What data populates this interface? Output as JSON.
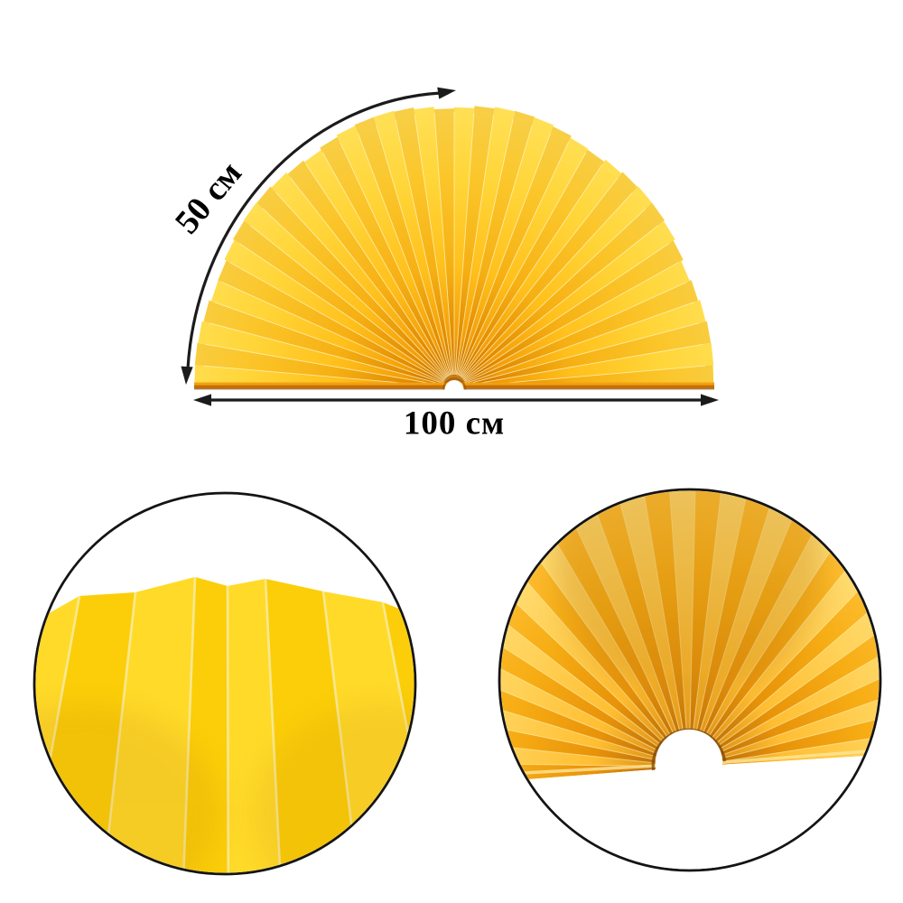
{
  "annotations": {
    "radius": {
      "label": "50 см"
    },
    "width": {
      "label": "100 см"
    }
  },
  "icons": {
    "radius_arrow": "curved-double-arrow-icon",
    "width_arrow": "horizontal-double-arrow-icon"
  },
  "colors": {
    "background": "#ffffff",
    "arrow": "#1b1b1b",
    "text": "#000000",
    "circle_outline": "#141414",
    "fan_gradient_light": [
      "#B36200",
      "#D47B00",
      "#F29D07",
      "#FFC01C",
      "#FFD63A",
      "#FFE25C"
    ],
    "fan_gradient_dark": [
      "#A35600",
      "#C26E00",
      "#E18A02",
      "#F6B013",
      "#FBC62A",
      "#F6D14E"
    ],
    "center_gradient_dark": [
      "#8A5206",
      "#C0720A",
      "#E8930A",
      "#F7AD14",
      "#FFC33A"
    ],
    "center_gradient_light": [
      "#A86208",
      "#DE9214",
      "#FFBE32",
      "#FFD055",
      "#FFE07A"
    ],
    "fold_line": "#FFF4C2",
    "bottom_edge": [
      "#F2A011",
      "#C76E00",
      "#934D00"
    ],
    "notch_shadow": "#8F5200",
    "detail_left": {
      "base": "#FFD30D",
      "light_pleat": "rgba(255,224,66,0.55)",
      "shade_pleat": "rgba(240,192,0,0.25)",
      "fold": "#F8ECA6"
    },
    "detail_right": {
      "fold": "rgba(255,236,170,0.55)",
      "edge_highlight": "#FFE79B",
      "notch_shadow": "#7A4A10",
      "soft_shade": "#B97607"
    }
  }
}
